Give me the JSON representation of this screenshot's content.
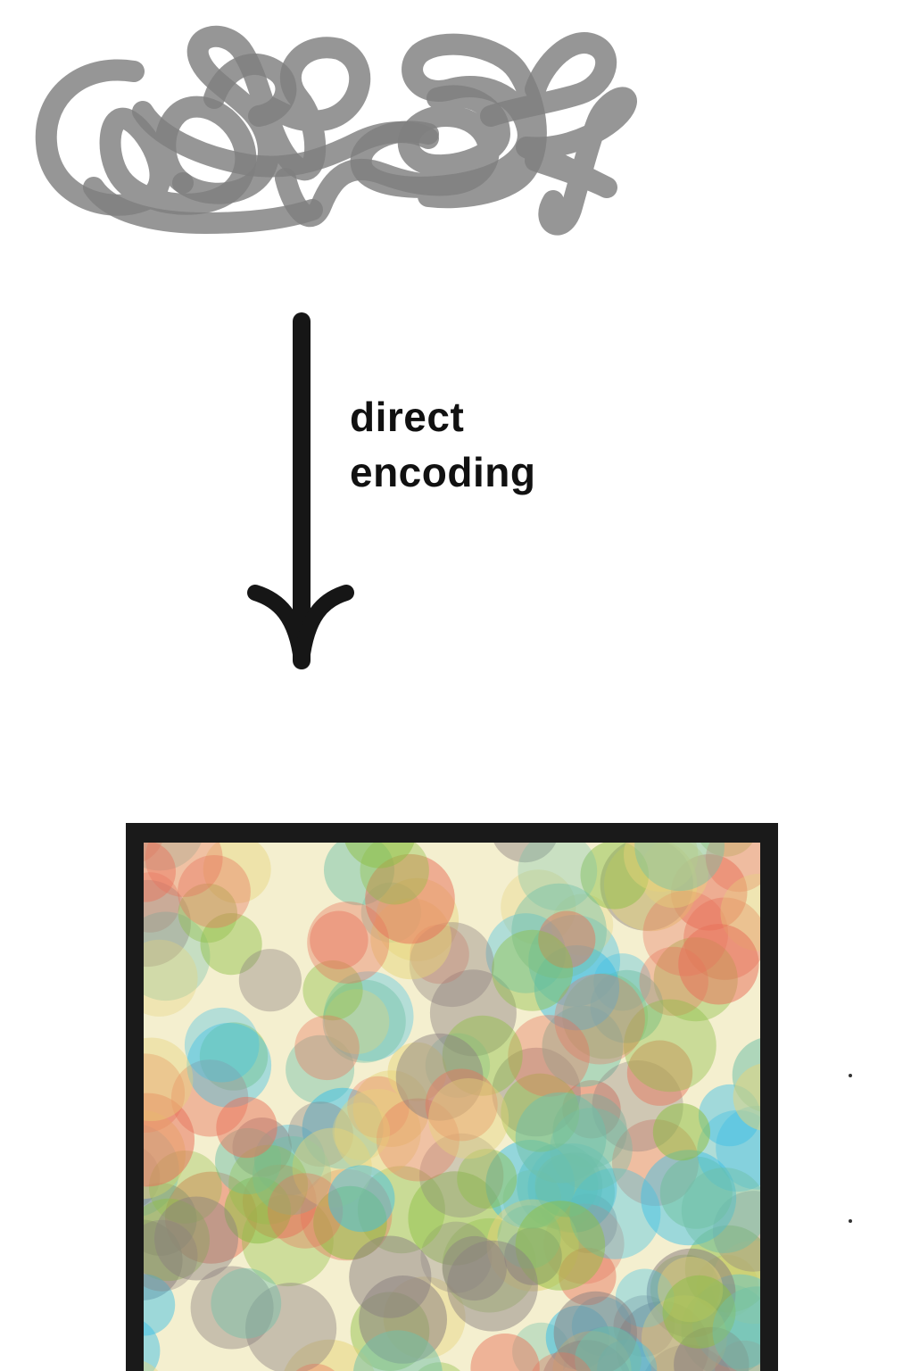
{
  "diagram": {
    "arrow_label_lines": [
      "direct",
      "encoding"
    ],
    "input_shape": "tangled-scribble",
    "input_color": "#7f7f7f",
    "arrow_color": "#161616",
    "output_shape": "framed-colorful-blobs",
    "frame_color": "#1a1a1a",
    "palette": [
      "#e8715a",
      "#3cbfe6",
      "#8dbf45",
      "#e6d47a",
      "#8a7f7f",
      "#6fc0a8"
    ]
  }
}
